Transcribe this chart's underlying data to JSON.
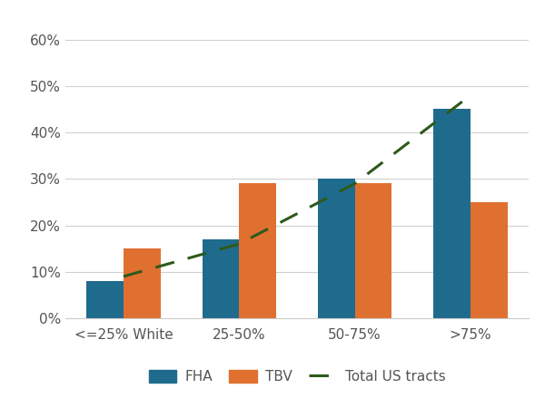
{
  "categories": [
    "<=25% White",
    "25-50%",
    "50-75%",
    ">75%"
  ],
  "fha_values": [
    8,
    17,
    30,
    45
  ],
  "tbv_values": [
    15,
    29,
    29,
    25
  ],
  "line_values": [
    9,
    16,
    29,
    48
  ],
  "fha_color": "#1f6b8e",
  "tbv_color": "#e07030",
  "line_color": "#2d5a1b",
  "figure_bg_color": "#ffffff",
  "plot_bg_color": "#ffffff",
  "grid_color": "#d0d0d0",
  "tick_label_color": "#555555",
  "ylim": [
    0,
    65
  ],
  "yticks": [
    0,
    10,
    20,
    30,
    40,
    50,
    60
  ],
  "ytick_labels": [
    "0%",
    "10%",
    "20%",
    "30%",
    "40%",
    "50%",
    "60%"
  ],
  "legend_fha": "FHA",
  "legend_tbv": "TBV",
  "legend_line": "Total US tracts",
  "bar_width": 0.32,
  "tick_fontsize": 11,
  "legend_fontsize": 11
}
